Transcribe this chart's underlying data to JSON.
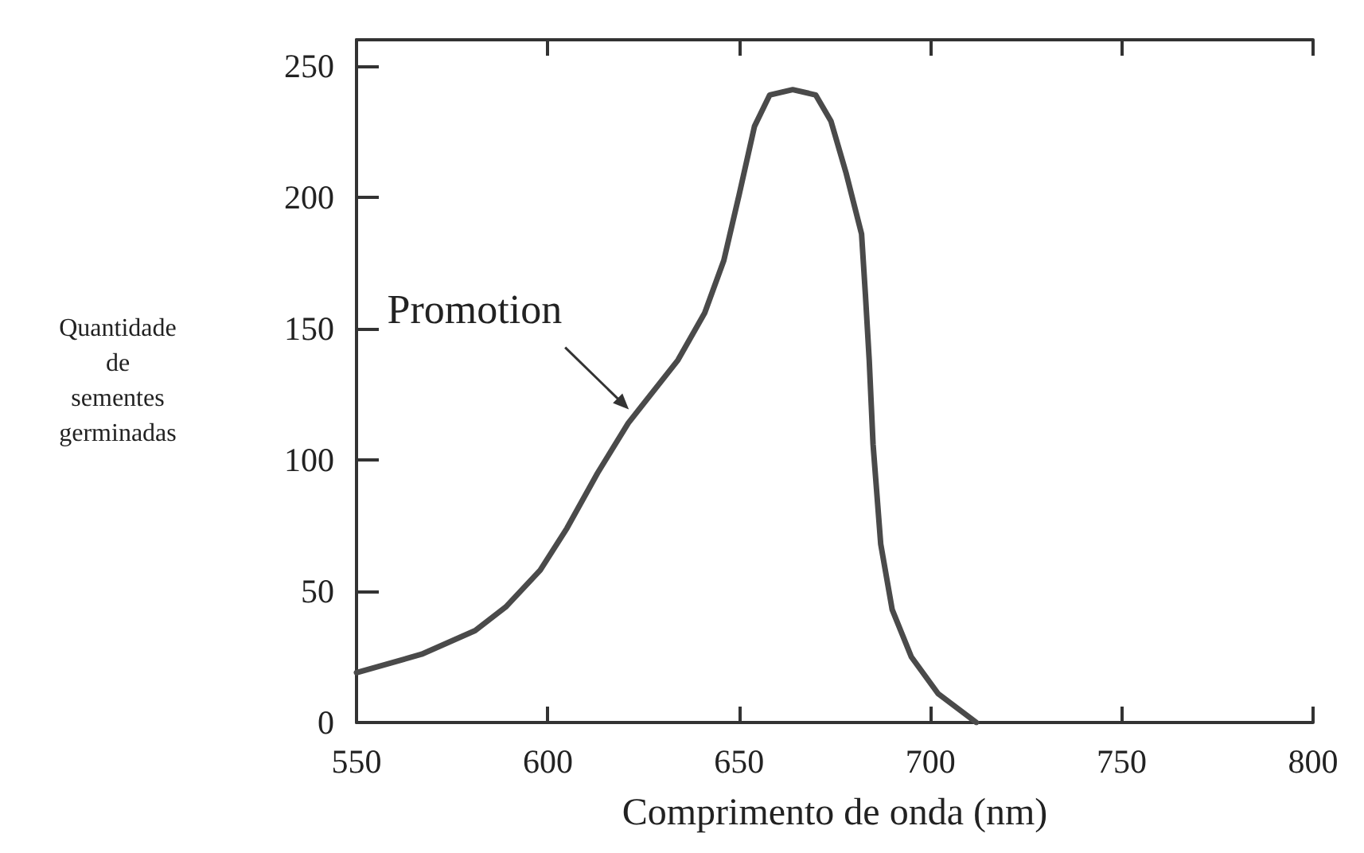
{
  "chart_data": {
    "type": "line",
    "xlabel": "Comprimento de onda (nm)",
    "ylabel": "Quantidade\nde\nsementes\ngerminadas",
    "x": [
      550,
      567,
      581,
      589,
      598,
      605,
      613,
      621,
      634,
      641,
      646,
      650,
      654,
      658,
      664,
      670,
      674,
      678,
      682,
      683,
      684,
      685,
      687,
      690,
      695,
      702,
      712
    ],
    "series": [
      {
        "color": "#4a4a4a",
        "values": [
          19,
          26,
          35,
          44,
          58,
          74,
          95,
          114,
          138,
          156,
          176,
          201,
          227,
          239,
          241,
          239,
          229,
          209,
          186,
          163,
          138,
          106,
          68,
          43,
          25,
          11,
          0
        ]
      }
    ],
    "xlim": [
      550,
      800
    ],
    "xticks": [
      550,
      600,
      650,
      700,
      750,
      800
    ],
    "ylim": [
      0,
      260
    ],
    "yticks": [
      0,
      50,
      100,
      150,
      200,
      250
    ],
    "annotations": [
      {
        "text": "Promotion",
        "x": 622,
        "y": 118
      }
    ],
    "grid": false,
    "marker": "none",
    "line_style": "solid"
  }
}
